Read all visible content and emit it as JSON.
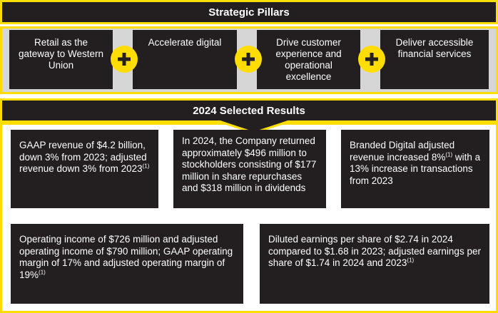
{
  "pillars": {
    "title": "Strategic Pillars",
    "items": [
      "Retail as the gateway to Western Union",
      "Accelerate digital",
      "Drive customer experience and operational excellence",
      "Deliver accessible financial services"
    ],
    "separator_icon": "plus-icon"
  },
  "results": {
    "title": "2024 Selected Results",
    "cards": [
      {
        "text": "GAAP revenue of $4.2 billion, down 3% from 2023; adjusted revenue down 3% from 2023",
        "note": "(1)"
      },
      {
        "text": "In 2024, the Company returned approximately $496 million to stockholders consisting of $177 million in share repurchases and $318 million in dividends",
        "note": ""
      },
      {
        "text_a": "Branded Digital adjusted revenue increased 8%",
        "note": "(1)",
        "text_b": " with a 13% increase in transactions from 2023"
      },
      {
        "text": "Operating income of $726 million and adjusted operating income of $790 million; GAAP operating margin of 17% and adjusted operating margin of 19%",
        "note": "(1)"
      },
      {
        "text": "Diluted earnings per share of $2.74 in 2024 compared to $1.68 in 2023; adjusted earnings per share of $1.74 in 2024 and 2023",
        "note": "(1)"
      }
    ]
  },
  "colors": {
    "accent": "#ffdd00",
    "panel": "#231f20",
    "band": "#d6d6d6",
    "text": "#ffffff"
  }
}
